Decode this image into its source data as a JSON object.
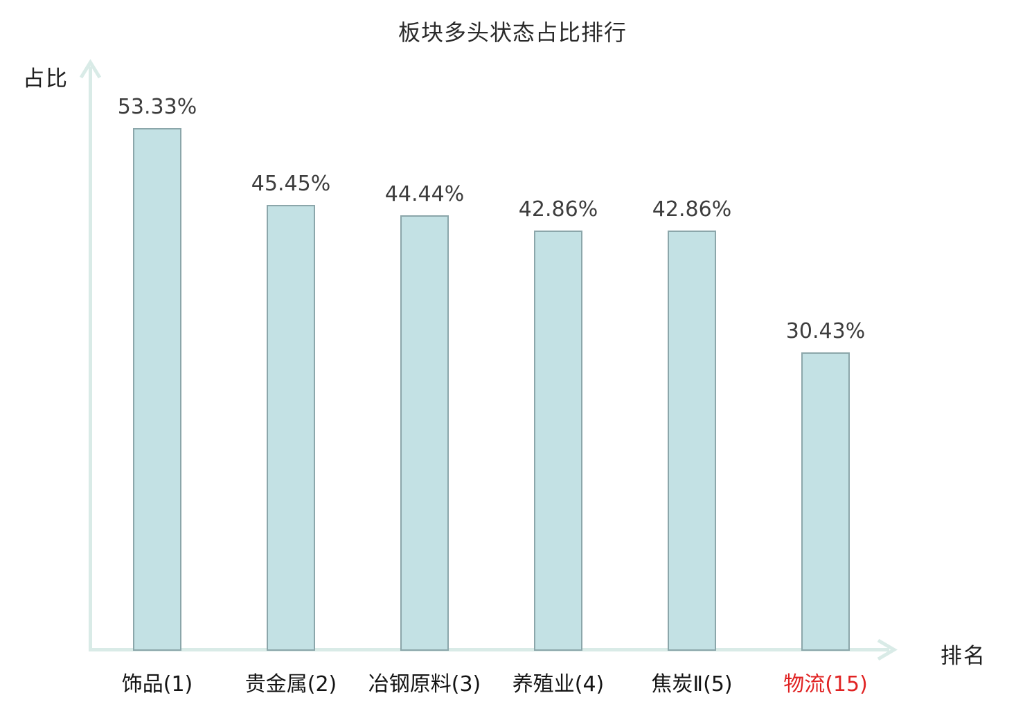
{
  "chart_data": {
    "type": "bar",
    "title": "板块多头状态占比排行",
    "xlabel": "排名",
    "ylabel": "占比",
    "categories": [
      "饰品(1)",
      "贵金属(2)",
      "冶钢原料(3)",
      "养殖业(4)",
      "焦炭Ⅱ(5)",
      "物流(15)"
    ],
    "values": [
      53.33,
      45.45,
      44.44,
      42.86,
      42.86,
      30.43
    ],
    "value_labels": [
      "53.33%",
      "45.45%",
      "44.44%",
      "42.86%",
      "42.86%",
      "30.43%"
    ],
    "highlight_index": 5,
    "ylim": [
      0,
      60
    ],
    "grid": false,
    "legend_position": "none",
    "colors": {
      "bar_fill": "#c3e1e4",
      "bar_border": "#8ba6aa",
      "axis": "#d9ebe7",
      "value_text": "#3d3d3d",
      "category_text": "#141414",
      "highlight_text": "#e02222",
      "title_text": "#2a2a2a"
    }
  }
}
